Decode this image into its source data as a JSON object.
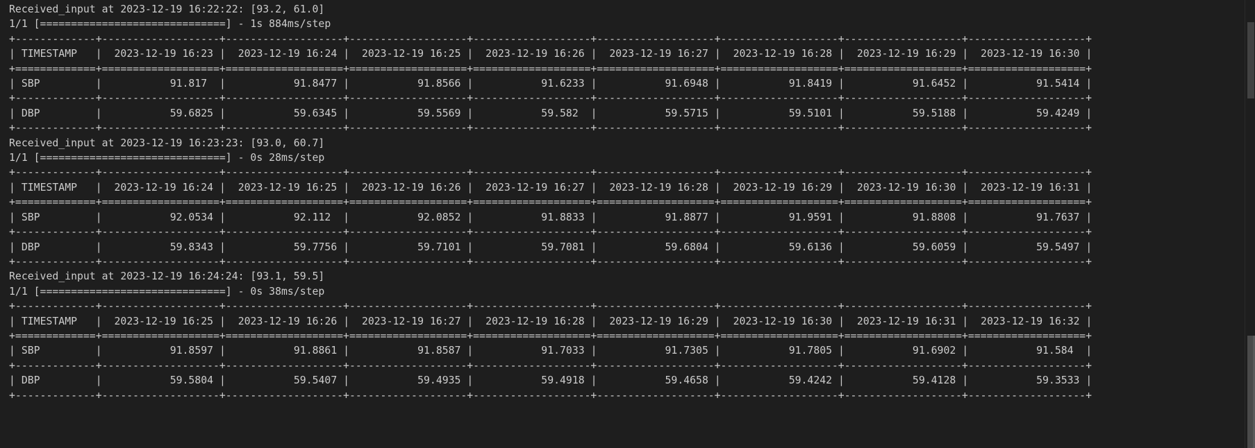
{
  "terminal": {
    "column_divider": "|",
    "rows": [
      {
        "status_line": "Received_input at 2023-12-19 16:22:22: [93.2, 61.0]",
        "progress_line": "1/1 [==============================] - 1s 884ms/step",
        "header": [
          "TIMESTAMP",
          "2023-12-19 16:23",
          "2023-12-19 16:24",
          "2023-12-19 16:25",
          "2023-12-19 16:26",
          "2023-12-19 16:27",
          "2023-12-19 16:28",
          "2023-12-19 16:29",
          "2023-12-19 16:30"
        ],
        "sbp": [
          "SBP",
          "91.817",
          "91.8477",
          "91.8566",
          "91.6233",
          "91.6948",
          "91.8419",
          "91.6452",
          "91.5414"
        ],
        "dbp": [
          "DBP",
          "59.6825",
          "59.6345",
          "59.5569",
          "59.582",
          "59.5715",
          "59.5101",
          "59.5188",
          "59.4249"
        ]
      },
      {
        "status_line": "Received_input at 2023-12-19 16:23:23: [93.0, 60.7]",
        "progress_line": "1/1 [==============================] - 0s 28ms/step",
        "header": [
          "TIMESTAMP",
          "2023-12-19 16:24",
          "2023-12-19 16:25",
          "2023-12-19 16:26",
          "2023-12-19 16:27",
          "2023-12-19 16:28",
          "2023-12-19 16:29",
          "2023-12-19 16:30",
          "2023-12-19 16:31"
        ],
        "sbp": [
          "SBP",
          "92.0534",
          "92.112",
          "92.0852",
          "91.8833",
          "91.8877",
          "91.9591",
          "91.8808",
          "91.7637"
        ],
        "dbp": [
          "DBP",
          "59.8343",
          "59.7756",
          "59.7101",
          "59.7081",
          "59.6804",
          "59.6136",
          "59.6059",
          "59.5497"
        ]
      },
      {
        "status_line": "Received_input at 2023-12-19 16:24:24: [93.1, 59.5]",
        "progress_line": "1/1 [==============================] - 0s 38ms/step",
        "header": [
          "TIMESTAMP",
          "2023-12-19 16:25",
          "2023-12-19 16:26",
          "2023-12-19 16:27",
          "2023-12-19 16:28",
          "2023-12-19 16:29",
          "2023-12-19 16:30",
          "2023-12-19 16:31",
          "2023-12-19 16:32"
        ],
        "sbp": [
          "SBP",
          "91.8597",
          "91.8861",
          "91.8587",
          "91.7033",
          "91.7305",
          "91.7805",
          "91.6902",
          "91.584"
        ],
        "dbp": [
          "DBP",
          "59.5804",
          "59.5407",
          "59.4935",
          "59.4918",
          "59.4658",
          "59.4242",
          "59.4128",
          "59.3533"
        ]
      }
    ]
  }
}
